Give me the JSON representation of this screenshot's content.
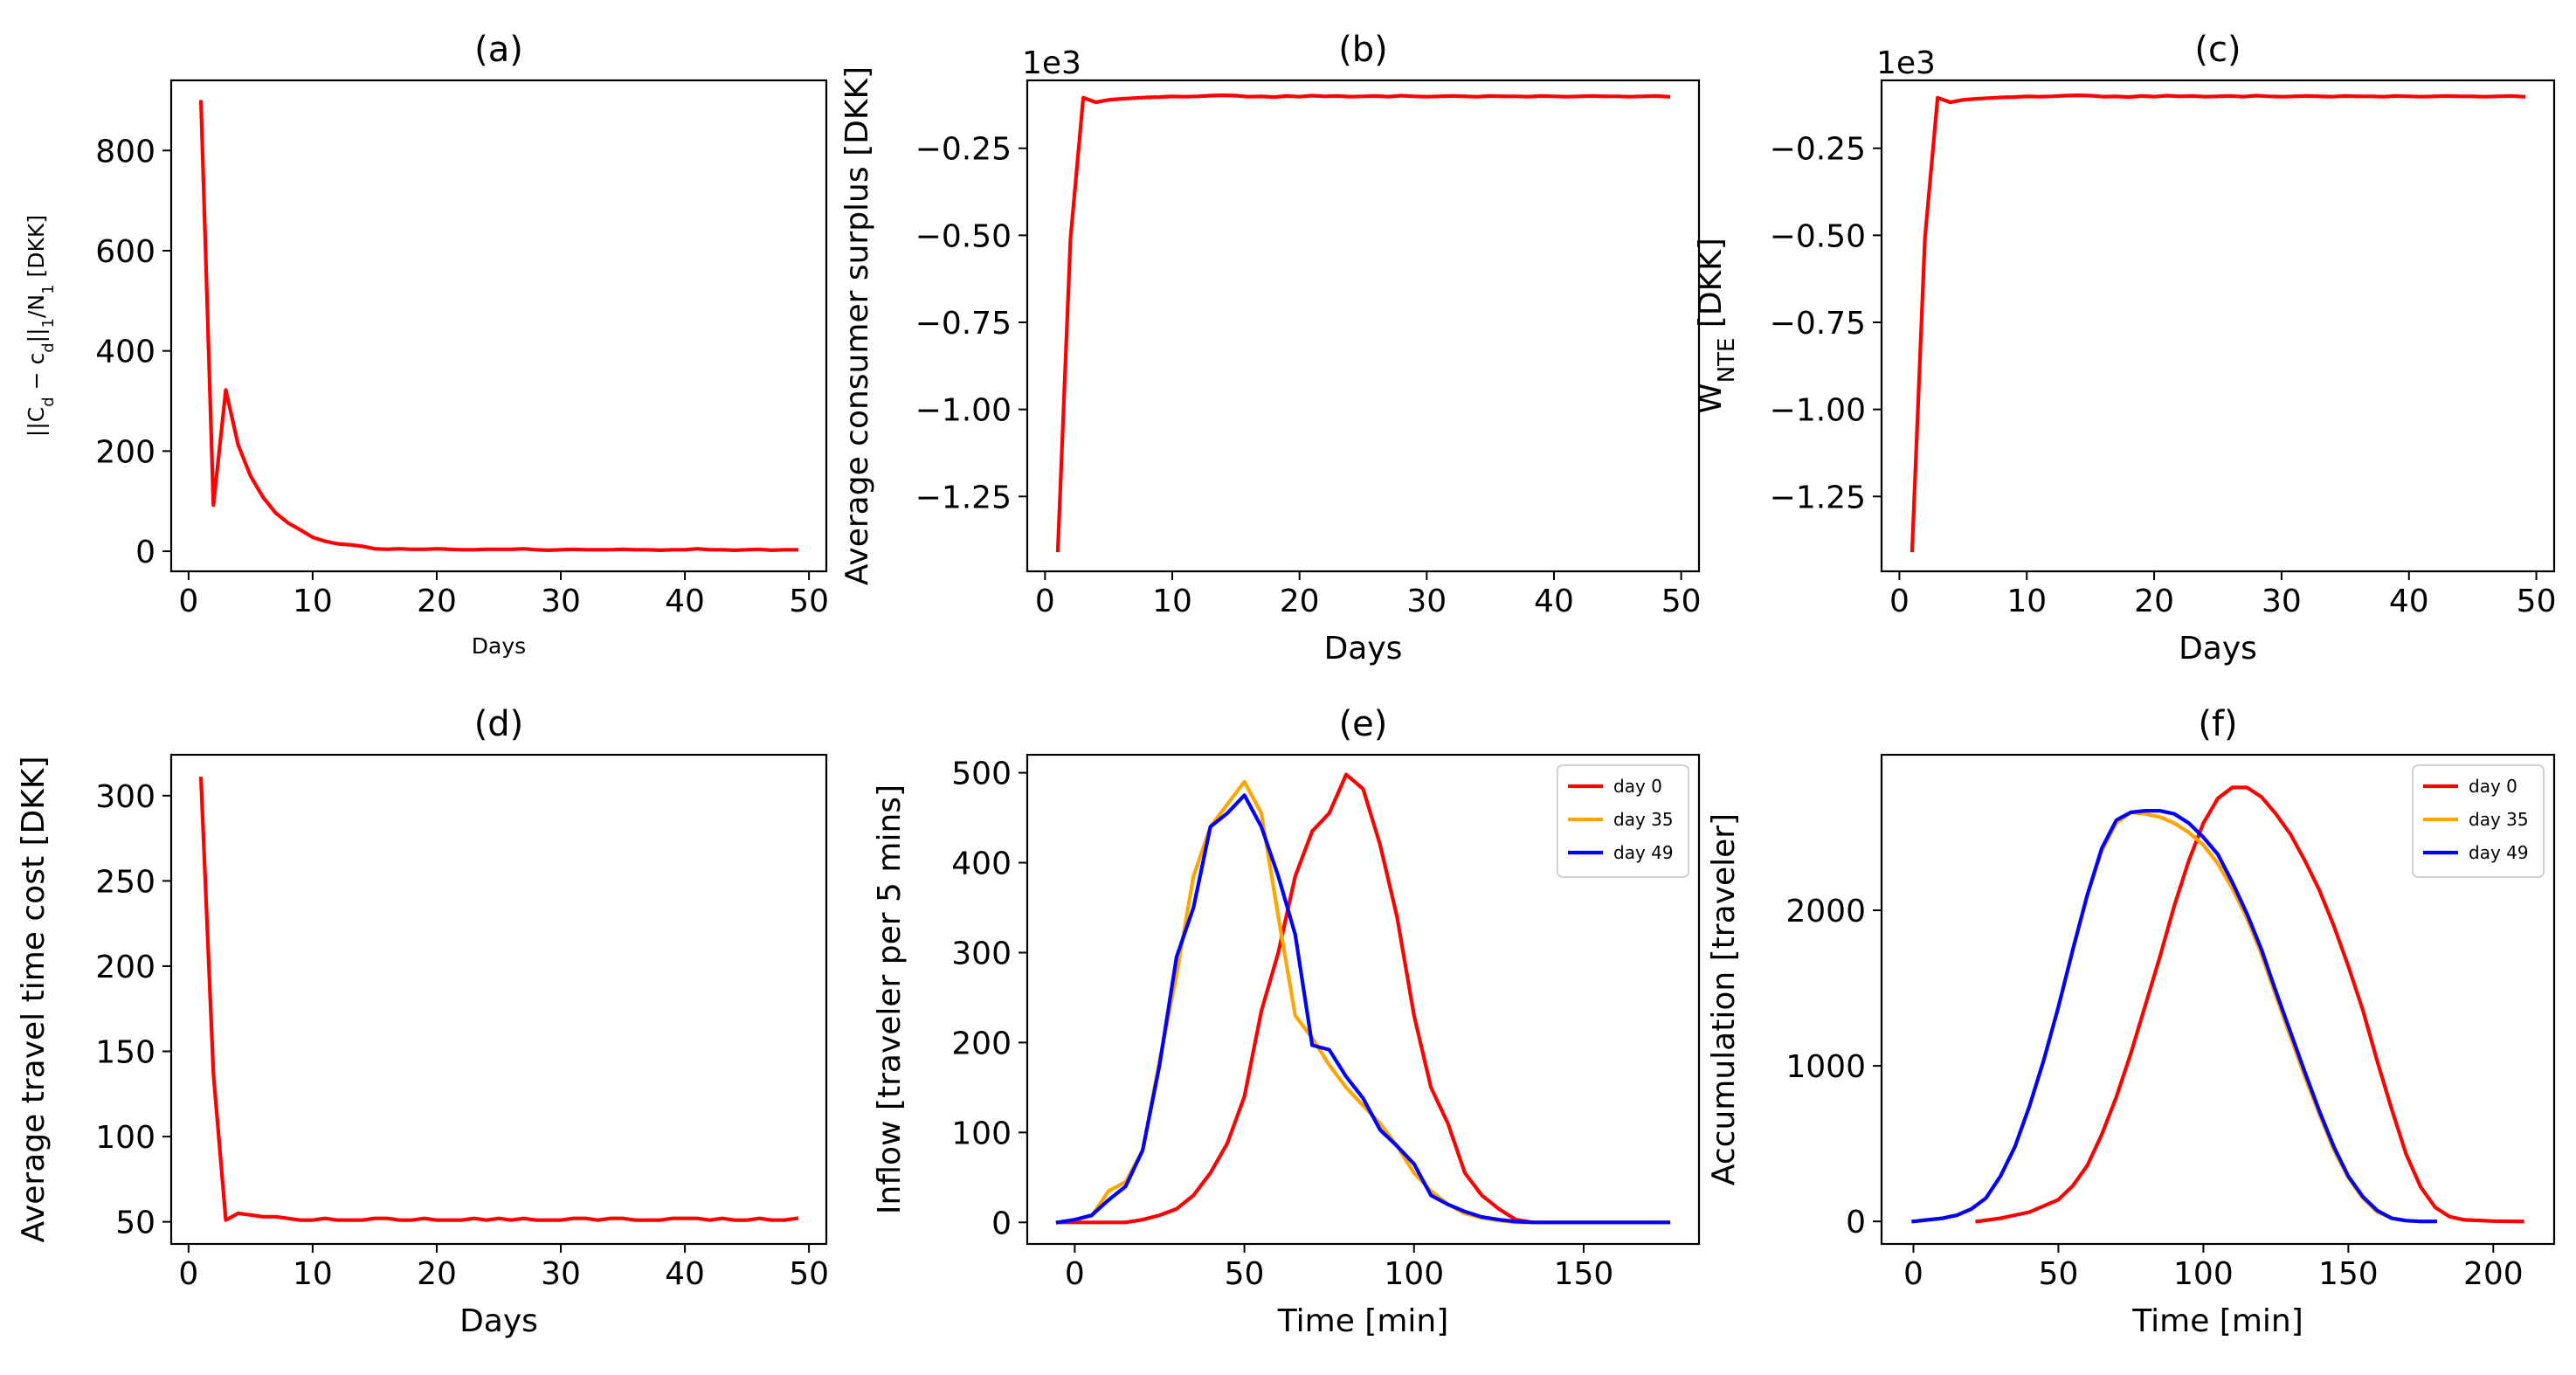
{
  "chart_data": [
    {
      "id": "a",
      "type": "line",
      "title": "(a)",
      "xlabel": "Days",
      "ylabel": "||C_d − c_d||_1/N_1 [DKK]",
      "xlim": [
        -1.4,
        51.4
      ],
      "ylim": [
        -40,
        940
      ],
      "xticks": [
        0,
        10,
        20,
        30,
        40,
        50
      ],
      "yticks": [
        0,
        200,
        400,
        600,
        800
      ],
      "ytick_labels": [
        "0",
        "200",
        "400",
        "600",
        "800"
      ],
      "grid": false,
      "series": [
        {
          "color": "#ff0000",
          "x": [
            1,
            2,
            3,
            4,
            5,
            6,
            7,
            8,
            9,
            10,
            11,
            12,
            13,
            14,
            15,
            16,
            17,
            18,
            19,
            20,
            21,
            22,
            23,
            24,
            25,
            26,
            27,
            28,
            29,
            30,
            31,
            32,
            33,
            34,
            35,
            36,
            37,
            38,
            39,
            40,
            41,
            42,
            43,
            44,
            45,
            46,
            47,
            48,
            49
          ],
          "y": [
            897,
            92,
            322,
            212,
            150,
            108,
            77,
            57,
            43,
            28,
            20,
            15,
            13,
            10,
            5,
            4,
            5,
            4,
            4,
            5,
            4,
            3,
            3,
            4,
            4,
            4,
            5,
            3,
            2,
            3,
            4,
            3,
            3,
            3,
            4,
            3,
            3,
            2,
            3,
            3,
            5,
            3,
            3,
            2,
            3,
            4,
            2,
            3,
            3
          ]
        }
      ]
    },
    {
      "id": "b",
      "type": "line",
      "title": "(b)",
      "xlabel": "Days",
      "ylabel": "Average consumer surplus [DKK]",
      "offset_label": "1e3",
      "xlim": [
        -1.4,
        51.4
      ],
      "ylim": [
        -1.465,
        -0.055
      ],
      "xticks": [
        0,
        10,
        20,
        30,
        40,
        50
      ],
      "yticks": [
        -1.25,
        -1.0,
        -0.75,
        -0.5,
        -0.25
      ],
      "ytick_labels": [
        "−1.25",
        "−1.00",
        "−0.75",
        "−0.50",
        "−0.25"
      ],
      "grid": false,
      "series": [
        {
          "color": "#ff0000",
          "x": [
            1,
            2,
            3,
            4,
            5,
            6,
            7,
            8,
            9,
            10,
            11,
            12,
            13,
            14,
            15,
            16,
            17,
            18,
            19,
            20,
            21,
            22,
            23,
            24,
            25,
            26,
            27,
            28,
            29,
            30,
            31,
            32,
            33,
            34,
            35,
            36,
            37,
            38,
            39,
            40,
            41,
            42,
            43,
            44,
            45,
            46,
            47,
            48,
            49
          ],
          "y": [
            -1.405,
            -0.51,
            -0.105,
            -0.118,
            -0.111,
            -0.108,
            -0.106,
            -0.104,
            -0.103,
            -0.101,
            -0.102,
            -0.101,
            -0.099,
            -0.098,
            -0.099,
            -0.102,
            -0.101,
            -0.103,
            -0.1,
            -0.102,
            -0.099,
            -0.101,
            -0.1,
            -0.102,
            -0.101,
            -0.1,
            -0.102,
            -0.099,
            -0.101,
            -0.102,
            -0.101,
            -0.1,
            -0.101,
            -0.102,
            -0.1,
            -0.101,
            -0.101,
            -0.102,
            -0.1,
            -0.101,
            -0.102,
            -0.101,
            -0.1,
            -0.101,
            -0.101,
            -0.102,
            -0.101,
            -0.1,
            -0.102
          ]
        }
      ]
    },
    {
      "id": "c",
      "type": "line",
      "title": "(c)",
      "xlabel": "Days",
      "ylabel": "W_NTE [DKK]",
      "offset_label": "1e3",
      "xlim": [
        -1.4,
        51.4
      ],
      "ylim": [
        -1.465,
        -0.055
      ],
      "xticks": [
        0,
        10,
        20,
        30,
        40,
        50
      ],
      "yticks": [
        -1.25,
        -1.0,
        -0.75,
        -0.5,
        -0.25
      ],
      "ytick_labels": [
        "−1.25",
        "−1.00",
        "−0.75",
        "−0.50",
        "−0.25"
      ],
      "grid": false,
      "series": [
        {
          "color": "#ff0000",
          "x": [
            1,
            2,
            3,
            4,
            5,
            6,
            7,
            8,
            9,
            10,
            11,
            12,
            13,
            14,
            15,
            16,
            17,
            18,
            19,
            20,
            21,
            22,
            23,
            24,
            25,
            26,
            27,
            28,
            29,
            30,
            31,
            32,
            33,
            34,
            35,
            36,
            37,
            38,
            39,
            40,
            41,
            42,
            43,
            44,
            45,
            46,
            47,
            48,
            49
          ],
          "y": [
            -1.405,
            -0.51,
            -0.105,
            -0.118,
            -0.111,
            -0.108,
            -0.106,
            -0.104,
            -0.103,
            -0.101,
            -0.102,
            -0.101,
            -0.099,
            -0.098,
            -0.099,
            -0.102,
            -0.101,
            -0.103,
            -0.1,
            -0.102,
            -0.099,
            -0.101,
            -0.1,
            -0.102,
            -0.101,
            -0.1,
            -0.102,
            -0.099,
            -0.101,
            -0.102,
            -0.101,
            -0.1,
            -0.101,
            -0.102,
            -0.1,
            -0.101,
            -0.101,
            -0.102,
            -0.1,
            -0.101,
            -0.102,
            -0.101,
            -0.1,
            -0.101,
            -0.101,
            -0.102,
            -0.101,
            -0.1,
            -0.102
          ]
        }
      ]
    },
    {
      "id": "d",
      "type": "line",
      "title": "(d)",
      "xlabel": "Days",
      "ylabel": "Average travel time cost [DKK]",
      "xlim": [
        -1.4,
        51.4
      ],
      "ylim": [
        37,
        324
      ],
      "xticks": [
        0,
        10,
        20,
        30,
        40,
        50
      ],
      "yticks": [
        50,
        100,
        150,
        200,
        250,
        300
      ],
      "ytick_labels": [
        "50",
        "100",
        "150",
        "200",
        "250",
        "300"
      ],
      "grid": false,
      "series": [
        {
          "color": "#ff0000",
          "x": [
            1,
            2,
            3,
            4,
            5,
            6,
            7,
            8,
            9,
            10,
            11,
            12,
            13,
            14,
            15,
            16,
            17,
            18,
            19,
            20,
            21,
            22,
            23,
            24,
            25,
            26,
            27,
            28,
            29,
            30,
            31,
            32,
            33,
            34,
            35,
            36,
            37,
            38,
            39,
            40,
            41,
            42,
            43,
            44,
            45,
            46,
            47,
            48,
            49
          ],
          "y": [
            310,
            137,
            51,
            55,
            54,
            53,
            53,
            52,
            51,
            51,
            52,
            51,
            51,
            51,
            52,
            52,
            51,
            51,
            52,
            51,
            51,
            51,
            52,
            51,
            52,
            51,
            52,
            51,
            51,
            51,
            52,
            52,
            51,
            52,
            52,
            51,
            51,
            51,
            52,
            52,
            52,
            51,
            52,
            51,
            51,
            52,
            51,
            51,
            52
          ]
        }
      ]
    },
    {
      "id": "e",
      "type": "line",
      "title": "(e)",
      "xlabel": "Time [min]",
      "ylabel": "Inflow [traveler per 5 mins]",
      "xlim": [
        -14,
        184
      ],
      "ylim": [
        -24,
        520
      ],
      "xticks": [
        0,
        50,
        100,
        150
      ],
      "yticks": [
        0,
        100,
        200,
        300,
        400,
        500
      ],
      "ytick_labels": [
        "0",
        "100",
        "200",
        "300",
        "400",
        "500"
      ],
      "grid": false,
      "legend": "top-right",
      "series": [
        {
          "name": "day 0",
          "color": "#ff0000",
          "x": [
            -5,
            0,
            5,
            10,
            15,
            20,
            25,
            30,
            35,
            40,
            45,
            50,
            55,
            60,
            65,
            70,
            75,
            80,
            85,
            90,
            95,
            100,
            105,
            110,
            115,
            120,
            125,
            130,
            135,
            140,
            145,
            150,
            155,
            160,
            165,
            170,
            175
          ],
          "y": [
            0,
            0,
            0,
            0,
            0,
            3,
            8,
            15,
            30,
            55,
            88,
            140,
            235,
            300,
            385,
            435,
            455,
            498,
            482,
            420,
            340,
            230,
            150,
            110,
            55,
            30,
            15,
            3,
            0,
            0,
            0,
            0,
            0,
            0,
            0,
            0,
            0
          ]
        },
        {
          "name": "day 35",
          "color": "#ffa500",
          "x": [
            -5,
            0,
            5,
            10,
            15,
            20,
            25,
            30,
            35,
            40,
            45,
            50,
            55,
            60,
            65,
            70,
            75,
            80,
            85,
            90,
            95,
            100,
            105,
            110,
            115,
            120,
            125,
            130,
            135,
            140,
            145,
            150,
            155,
            160,
            165,
            170,
            175
          ],
          "y": [
            0,
            3,
            7,
            35,
            45,
            80,
            180,
            275,
            385,
            440,
            465,
            490,
            455,
            340,
            230,
            205,
            175,
            150,
            130,
            110,
            85,
            55,
            35,
            20,
            10,
            5,
            2,
            0,
            0,
            0,
            0,
            0,
            0,
            0,
            0,
            0,
            0
          ]
        },
        {
          "name": "day 49",
          "color": "#0000ff",
          "x": [
            -5,
            0,
            5,
            10,
            15,
            20,
            25,
            30,
            35,
            40,
            45,
            50,
            55,
            60,
            65,
            70,
            75,
            80,
            85,
            90,
            95,
            100,
            105,
            110,
            115,
            120,
            125,
            130,
            135,
            140,
            145,
            150,
            155,
            160,
            165,
            170,
            175
          ],
          "y": [
            0,
            3,
            8,
            25,
            40,
            80,
            175,
            295,
            350,
            440,
            455,
            475,
            440,
            385,
            320,
            197,
            192,
            162,
            138,
            103,
            85,
            65,
            30,
            20,
            12,
            6,
            3,
            1,
            0,
            0,
            0,
            0,
            0,
            0,
            0,
            0,
            0
          ]
        }
      ]
    },
    {
      "id": "f",
      "type": "line",
      "title": "(f)",
      "xlabel": "Time [min]",
      "ylabel": "Accumulation [traveler]",
      "xlim": [
        -11,
        221
      ],
      "ylim": [
        -145,
        3000
      ],
      "xticks": [
        0,
        50,
        100,
        150,
        200
      ],
      "yticks": [
        0,
        1000,
        2000
      ],
      "ytick_labels": [
        "0",
        "1000",
        "2000"
      ],
      "grid": false,
      "legend": "top-right",
      "series": [
        {
          "name": "day 0",
          "color": "#ff0000",
          "x": [
            22,
            30,
            40,
            50,
            55,
            60,
            65,
            70,
            75,
            80,
            85,
            90,
            95,
            100,
            105,
            110,
            115,
            120,
            125,
            130,
            135,
            140,
            145,
            150,
            155,
            160,
            165,
            170,
            175,
            180,
            185,
            190,
            200,
            210
          ],
          "y": [
            0,
            20,
            60,
            140,
            230,
            360,
            560,
            800,
            1080,
            1390,
            1700,
            2030,
            2320,
            2560,
            2720,
            2790,
            2790,
            2730,
            2620,
            2490,
            2320,
            2130,
            1900,
            1640,
            1360,
            1030,
            720,
            430,
            220,
            90,
            30,
            10,
            2,
            0
          ]
        },
        {
          "name": "day 35",
          "color": "#ffa500",
          "x": [
            0,
            5,
            10,
            15,
            20,
            25,
            30,
            35,
            40,
            45,
            50,
            55,
            60,
            65,
            70,
            75,
            80,
            85,
            90,
            95,
            100,
            105,
            110,
            115,
            120,
            125,
            130,
            135,
            140,
            145,
            150,
            155,
            160,
            165,
            170,
            175,
            180
          ],
          "y": [
            0,
            10,
            20,
            40,
            80,
            150,
            290,
            480,
            740,
            1040,
            1380,
            1750,
            2100,
            2380,
            2560,
            2630,
            2620,
            2600,
            2560,
            2500,
            2420,
            2300,
            2140,
            1950,
            1720,
            1450,
            1190,
            930,
            690,
            460,
            280,
            150,
            60,
            20,
            5,
            0,
            0
          ]
        },
        {
          "name": "day 49",
          "color": "#0000ff",
          "x": [
            0,
            5,
            10,
            15,
            20,
            25,
            30,
            35,
            40,
            45,
            50,
            55,
            60,
            65,
            70,
            75,
            80,
            85,
            90,
            95,
            100,
            105,
            110,
            115,
            120,
            125,
            130,
            135,
            140,
            145,
            150,
            155,
            160,
            165,
            170,
            175,
            180
          ],
          "y": [
            0,
            10,
            20,
            40,
            80,
            150,
            290,
            480,
            740,
            1040,
            1380,
            1750,
            2100,
            2400,
            2580,
            2630,
            2640,
            2640,
            2620,
            2560,
            2470,
            2360,
            2180,
            1980,
            1750,
            1480,
            1220,
            960,
            710,
            480,
            290,
            160,
            70,
            20,
            5,
            0,
            0
          ]
        }
      ]
    }
  ]
}
